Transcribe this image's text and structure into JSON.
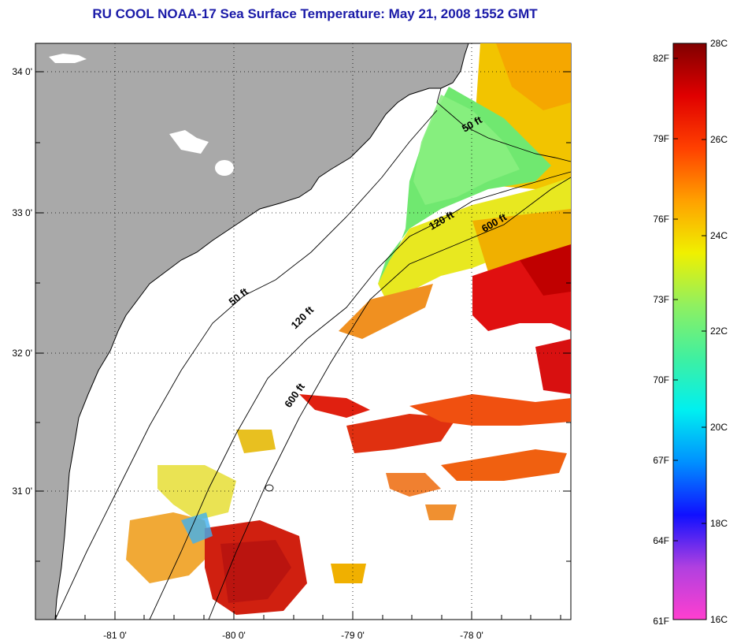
{
  "title": "RU COOL  NOAA-17  Sea Surface Temperature:  May 21, 2008 1552 GMT",
  "colors": {
    "title": "#1a1aa8",
    "land": "#a9a9a9",
    "grid": "#000000"
  },
  "map": {
    "lon_range": [
      -81.7,
      -77.2
    ],
    "lat_range": [
      30.05,
      34.22
    ],
    "lon_ticks": [
      {
        "value": -81,
        "label": "-81 0'"
      },
      {
        "value": -80,
        "label": "-80 0'"
      },
      {
        "value": -79,
        "label": "-79 0'"
      },
      {
        "value": -78,
        "label": "-78 0'"
      }
    ],
    "lat_ticks": [
      {
        "value": 34,
        "label": "34 0'"
      },
      {
        "value": 33,
        "label": "33 0'"
      },
      {
        "value": 32,
        "label": "32 0'"
      },
      {
        "value": 31,
        "label": "31 0'"
      }
    ],
    "contour_labels": [
      "50 ft",
      "120 ft",
      "600 ft",
      "50 ft",
      "120 ft",
      "600 ft"
    ]
  },
  "colorbar": {
    "celsius_labels": [
      "28C",
      "26C",
      "24C",
      "22C",
      "20C",
      "18C",
      "16C"
    ],
    "fahrenheit_labels": [
      "82F",
      "79F",
      "76F",
      "73F",
      "70F",
      "67F",
      "64F",
      "61F"
    ],
    "range_c": [
      16,
      28
    ],
    "stops": [
      "#ff3fcf",
      "#b040e0",
      "#1010ff",
      "#0090ff",
      "#00f0f0",
      "#40f0a0",
      "#90f060",
      "#f0f000",
      "#ffa000",
      "#ff4000",
      "#e00000",
      "#800000"
    ]
  }
}
